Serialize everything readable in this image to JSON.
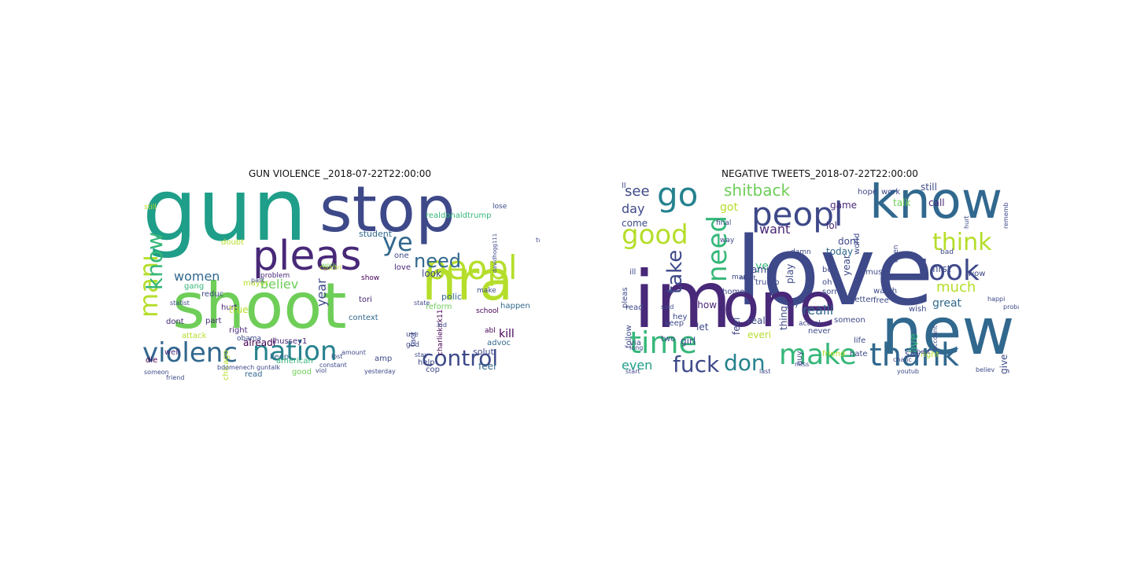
{
  "palette": [
    "#440154",
    "#482878",
    "#3e4989",
    "#31688e",
    "#26828e",
    "#1f9e89",
    "#35b779",
    "#6ece58",
    "#b5de2b",
    "#fde725"
  ],
  "panels": [
    {
      "title": "GUN VIOLENCE _2018-07-22T22:00:00",
      "words": [
        {
          "text": "gun",
          "size": 110,
          "color": "#1f9e89"
        },
        {
          "text": "stop",
          "size": 80,
          "color": "#3e4989"
        },
        {
          "text": "shoot",
          "size": 80,
          "color": "#6ece58"
        },
        {
          "text": "nra",
          "size": 70,
          "color": "#b5de2b"
        },
        {
          "text": "pleas",
          "size": 52,
          "color": "#482878"
        },
        {
          "text": "peopl",
          "size": 42,
          "color": "#b5de2b"
        },
        {
          "text": "violenc",
          "size": 34,
          "color": "#31688e"
        },
        {
          "text": "nation",
          "size": 34,
          "color": "#26828e"
        },
        {
          "text": "control",
          "size": 28,
          "color": "#3e4989"
        },
        {
          "text": "mani",
          "size": 32,
          "color": "#b5de2b",
          "rot": -90
        },
        {
          "text": "know",
          "size": 28,
          "color": "#35b779",
          "rot": -90
        },
        {
          "text": "ye",
          "size": 32,
          "color": "#31688e"
        },
        {
          "text": "need",
          "size": 24,
          "color": "#31688e"
        },
        {
          "text": "women",
          "size": 16,
          "color": "#31688e"
        },
        {
          "text": "believ",
          "size": 16,
          "color": "#6ece58"
        },
        {
          "text": "year",
          "size": 16,
          "color": "#3e4989",
          "rot": -90
        },
        {
          "text": "realdonaldtrump",
          "size": 10,
          "color": "#35b779"
        },
        {
          "text": "charliekirk11",
          "size": 9,
          "color": "#440154",
          "rot": -90
        },
        {
          "text": "student",
          "size": 11,
          "color": "#31688e"
        },
        {
          "text": "reduc",
          "size": 10,
          "color": "#3e4989"
        },
        {
          "text": "mayor",
          "size": 10,
          "color": "#b5de2b"
        },
        {
          "text": "hurt",
          "size": 10,
          "color": "#482878"
        },
        {
          "text": "doubt",
          "size": 10,
          "color": "#b5de2b"
        },
        {
          "text": "gang",
          "size": 10,
          "color": "#35b779"
        },
        {
          "text": "true",
          "size": 12,
          "color": "#b5de2b"
        },
        {
          "text": "dont",
          "size": 10,
          "color": "#482878"
        },
        {
          "text": "part",
          "size": 10,
          "color": "#482878"
        },
        {
          "text": "right",
          "size": 10,
          "color": "#482878"
        },
        {
          "text": "alreadi",
          "size": 12,
          "color": "#440154"
        },
        {
          "text": "look",
          "size": 12,
          "color": "#3e4989"
        },
        {
          "text": "tori",
          "size": 10,
          "color": "#482878"
        },
        {
          "text": "keep",
          "size": 10,
          "color": "#31688e"
        },
        {
          "text": "attack",
          "size": 10,
          "color": "#b5de2b"
        },
        {
          "text": "chicago",
          "size": 10,
          "color": "#b5de2b",
          "rot": -90
        },
        {
          "text": "american",
          "size": 10,
          "color": "#35b779"
        },
        {
          "text": "good",
          "size": 10,
          "color": "#6ece58"
        },
        {
          "text": "read",
          "size": 10,
          "color": "#31688e"
        },
        {
          "text": "ihussey1",
          "size": 10,
          "color": "#482878"
        },
        {
          "text": "well",
          "size": 10,
          "color": "#482878"
        },
        {
          "text": "die",
          "size": 10,
          "color": "#440154"
        },
        {
          "text": "polic",
          "size": 11,
          "color": "#31688e"
        },
        {
          "text": "reform",
          "size": 10,
          "color": "#6ece58"
        },
        {
          "text": "kill",
          "size": 14,
          "color": "#440154"
        },
        {
          "text": "happen",
          "size": 10,
          "color": "#31688e"
        },
        {
          "text": "context",
          "size": 10,
          "color": "#31688e"
        },
        {
          "text": "show",
          "size": 9,
          "color": "#440154"
        },
        {
          "text": "one",
          "size": 10,
          "color": "#3e4989"
        },
        {
          "text": "love",
          "size": 10,
          "color": "#482878"
        },
        {
          "text": "problem",
          "size": 9,
          "color": "#482878"
        },
        {
          "text": "obama",
          "size": 9,
          "color": "#3e4989"
        },
        {
          "text": "feel",
          "size": 12,
          "color": "#31688e"
        },
        {
          "text": "abl",
          "size": 9,
          "color": "#440154"
        },
        {
          "text": "advoc",
          "size": 10,
          "color": "#31688e"
        },
        {
          "text": "make",
          "size": 9,
          "color": "#3e4989"
        },
        {
          "text": "school",
          "size": 9,
          "color": "#440154"
        },
        {
          "text": "use",
          "size": 9,
          "color": "#3e4989"
        },
        {
          "text": "god",
          "size": 9,
          "color": "#3e4989"
        },
        {
          "text": "amp",
          "size": 10,
          "color": "#3e4989"
        },
        {
          "text": "solut",
          "size": 11,
          "color": "#3e4989"
        },
        {
          "text": "help",
          "size": 10,
          "color": "#3e4989"
        },
        {
          "text": "fact",
          "size": 10,
          "color": "#3e4989",
          "rot": -90
        },
        {
          "text": "cop",
          "size": 10,
          "color": "#3e4989"
        },
        {
          "text": "still",
          "size": 9,
          "color": "#b5de2b"
        },
        {
          "text": "lose",
          "size": 9,
          "color": "#3e4989"
        },
        {
          "text": "past",
          "size": 8,
          "color": "#3e4989"
        },
        {
          "text": "countri",
          "size": 8,
          "color": "#b5de2b"
        },
        {
          "text": "friend",
          "size": 8,
          "color": "#3e4989"
        },
        {
          "text": "statist",
          "size": 8,
          "color": "#3e4989"
        },
        {
          "text": "amount",
          "size": 8,
          "color": "#3e4989"
        },
        {
          "text": "constant",
          "size": 8,
          "color": "#3e4989"
        },
        {
          "text": "bdomenech",
          "size": 8,
          "color": "#3e4989"
        },
        {
          "text": "guntalk",
          "size": 8,
          "color": "#3e4989"
        },
        {
          "text": "yesterday",
          "size": 8,
          "color": "#3e4989"
        },
        {
          "text": "stay",
          "size": 8,
          "color": "#3e4989"
        },
        {
          "text": "lost",
          "size": 8,
          "color": "#3e4989"
        },
        {
          "text": "viol",
          "size": 8,
          "color": "#3e4989"
        },
        {
          "text": "work",
          "size": 8,
          "color": "#6ece58"
        },
        {
          "text": "davidhogg111",
          "size": 7,
          "color": "#3e4989",
          "rot": -90
        },
        {
          "text": "tweet",
          "size": 8,
          "color": "#3e4989"
        },
        {
          "text": "state",
          "size": 8,
          "color": "#3e4989"
        },
        {
          "text": "kid",
          "size": 8,
          "color": "#3e4989"
        },
        {
          "text": "someon",
          "size": 8,
          "color": "#3e4989"
        }
      ]
    },
    {
      "title": "NEGATIVE TWEETS_2018-07-22T22:00:00",
      "words": [
        {
          "text": "love",
          "size": 120,
          "color": "#3e4989"
        },
        {
          "text": "im",
          "size": 100,
          "color": "#482878"
        },
        {
          "text": "one",
          "size": 78,
          "color": "#482878"
        },
        {
          "text": "new",
          "size": 82,
          "color": "#31688e"
        },
        {
          "text": "know",
          "size": 64,
          "color": "#31688e"
        },
        {
          "text": "peopl",
          "size": 42,
          "color": "#3e4989"
        },
        {
          "text": "go",
          "size": 42,
          "color": "#26828e"
        },
        {
          "text": "good",
          "size": 34,
          "color": "#b5de2b"
        },
        {
          "text": "need",
          "size": 34,
          "color": "#35b779",
          "rot": -90
        },
        {
          "text": "thank",
          "size": 40,
          "color": "#31688e"
        },
        {
          "text": "make",
          "size": 36,
          "color": "#35b779"
        },
        {
          "text": "time",
          "size": 38,
          "color": "#35b779"
        },
        {
          "text": "look",
          "size": 36,
          "color": "#3e4989"
        },
        {
          "text": "think",
          "size": 30,
          "color": "#b5de2b"
        },
        {
          "text": "fuck",
          "size": 28,
          "color": "#3e4989"
        },
        {
          "text": "don",
          "size": 28,
          "color": "#26828e"
        },
        {
          "text": "take",
          "size": 26,
          "color": "#3e4989",
          "rot": -90
        },
        {
          "text": "shitback",
          "size": 20,
          "color": "#6ece58"
        },
        {
          "text": "want",
          "size": 16,
          "color": "#482878"
        },
        {
          "text": "see",
          "size": 18,
          "color": "#3e4989"
        },
        {
          "text": "day",
          "size": 16,
          "color": "#3e4989"
        },
        {
          "text": "got",
          "size": 14,
          "color": "#b5de2b"
        },
        {
          "text": "much",
          "size": 18,
          "color": "#b5de2b"
        },
        {
          "text": "realli",
          "size": 16,
          "color": "#31688e"
        },
        {
          "text": "even",
          "size": 16,
          "color": "#1f9e89"
        },
        {
          "text": "show",
          "size": 12,
          "color": "#482878"
        },
        {
          "text": "ye",
          "size": 14,
          "color": "#35b779"
        },
        {
          "text": "lol",
          "size": 12,
          "color": "#482878"
        },
        {
          "text": "dont",
          "size": 12,
          "color": "#3e4989"
        },
        {
          "text": "today",
          "size": 12,
          "color": "#31688e"
        },
        {
          "text": "game",
          "size": 12,
          "color": "#482878"
        },
        {
          "text": "talk",
          "size": 12,
          "color": "#6ece58"
        },
        {
          "text": "call",
          "size": 12,
          "color": "#482878"
        },
        {
          "text": "still",
          "size": 12,
          "color": "#3e4989"
        },
        {
          "text": "hope",
          "size": 10,
          "color": "#3e4989"
        },
        {
          "text": "work",
          "size": 10,
          "color": "#3e4989"
        },
        {
          "text": "first",
          "size": 12,
          "color": "#3e4989"
        },
        {
          "text": "great",
          "size": 14,
          "color": "#31688e"
        },
        {
          "text": "wow",
          "size": 10,
          "color": "#3e4989"
        },
        {
          "text": "come",
          "size": 12,
          "color": "#3e4989"
        },
        {
          "text": "play",
          "size": 12,
          "color": "#3e4989",
          "rot": -90
        },
        {
          "text": "amp",
          "size": 12,
          "color": "#3e4989"
        },
        {
          "text": "home",
          "size": 10,
          "color": "#3e4989"
        },
        {
          "text": "year",
          "size": 12,
          "color": "#3e4989",
          "rot": -90
        },
        {
          "text": "music",
          "size": 10,
          "color": "#3e4989"
        },
        {
          "text": "never",
          "size": 10,
          "color": "#3e4989"
        },
        {
          "text": "watch",
          "size": 10,
          "color": "#3e4989"
        },
        {
          "text": "better",
          "size": 10,
          "color": "#3e4989"
        },
        {
          "text": "free",
          "size": 10,
          "color": "#3e4989"
        },
        {
          "text": "live",
          "size": 14,
          "color": "#35b779",
          "rot": -90
        },
        {
          "text": "say",
          "size": 12,
          "color": "#3e4989"
        },
        {
          "text": "give",
          "size": 12,
          "color": "#3e4989",
          "rot": -90
        },
        {
          "text": "keep",
          "size": 10,
          "color": "#3e4989"
        },
        {
          "text": "let",
          "size": 12,
          "color": "#3e4989"
        },
        {
          "text": "feel",
          "size": 12,
          "color": "#3e4989",
          "rot": -90
        },
        {
          "text": "girl",
          "size": 12,
          "color": "#3e4989"
        },
        {
          "text": "real",
          "size": 12,
          "color": "#3e4989"
        },
        {
          "text": "everi",
          "size": 12,
          "color": "#b5de2b"
        },
        {
          "text": "thing",
          "size": 12,
          "color": "#3e4989",
          "rot": -90
        },
        {
          "text": "someon",
          "size": 10,
          "color": "#3e4989"
        },
        {
          "text": "life",
          "size": 10,
          "color": "#3e4989"
        },
        {
          "text": "wish",
          "size": 10,
          "color": "#3e4989"
        },
        {
          "text": "right",
          "size": 10,
          "color": "#b5de2b"
        },
        {
          "text": "friend",
          "size": 10,
          "color": "#b5de2b"
        },
        {
          "text": "hate",
          "size": 10,
          "color": "#3e4989"
        },
        {
          "text": "pleas",
          "size": 10,
          "color": "#3e4989",
          "rot": -90
        },
        {
          "text": "follow",
          "size": 10,
          "color": "#3e4989",
          "rot": -90
        },
        {
          "text": "read",
          "size": 10,
          "color": "#3e4989"
        },
        {
          "text": "two",
          "size": 10,
          "color": "#3e4989"
        },
        {
          "text": "hey",
          "size": 10,
          "color": "#3e4989"
        },
        {
          "text": "ill",
          "size": 10,
          "color": "#3e4989"
        },
        {
          "text": "via",
          "size": 10,
          "color": "#3e4989"
        },
        {
          "text": "man",
          "size": 9,
          "color": "#3e4989"
        },
        {
          "text": "trump",
          "size": 10,
          "color": "#3e4989"
        },
        {
          "text": "sorri",
          "size": 10,
          "color": "#3e4989"
        },
        {
          "text": "bet",
          "size": 10,
          "color": "#3e4989"
        },
        {
          "text": "oh",
          "size": 10,
          "color": "#3e4989"
        },
        {
          "text": "world",
          "size": 10,
          "color": "#3e4989",
          "rot": -90
        },
        {
          "text": "guy",
          "size": 10,
          "color": "#3e4989",
          "rot": -90
        },
        {
          "text": "final",
          "size": 9,
          "color": "#3e4989"
        },
        {
          "text": "way",
          "size": 9,
          "color": "#3e4989"
        },
        {
          "text": "damn",
          "size": 9,
          "color": "#3e4989"
        },
        {
          "text": "actual",
          "size": 9,
          "color": "#3e4989"
        },
        {
          "text": "bad",
          "size": 9,
          "color": "#3e4989"
        },
        {
          "text": "open",
          "size": 9,
          "color": "#3e4989",
          "rot": -90
        },
        {
          "text": "rememb",
          "size": 8,
          "color": "#3e4989",
          "rot": -90
        },
        {
          "text": "hurt",
          "size": 8,
          "color": "#3e4989",
          "rot": -90
        },
        {
          "text": "happi",
          "size": 8,
          "color": "#3e4989"
        },
        {
          "text": "believ",
          "size": 8,
          "color": "#3e4989"
        },
        {
          "text": "youtub",
          "size": 8,
          "color": "#3e4989"
        },
        {
          "text": "chanc",
          "size": 8,
          "color": "#3e4989"
        },
        {
          "text": "start",
          "size": 8,
          "color": "#3e4989"
        },
        {
          "text": "last",
          "size": 8,
          "color": "#3e4989"
        },
        {
          "text": "said",
          "size": 8,
          "color": "#3e4989"
        },
        {
          "text": "night",
          "size": 8,
          "color": "#3e4989"
        },
        {
          "text": "miss",
          "size": 8,
          "color": "#3e4989"
        },
        {
          "text": "boy",
          "size": 8,
          "color": "#3e4989"
        },
        {
          "text": "probabl",
          "size": 8,
          "color": "#3e4989"
        },
        {
          "text": "account",
          "size": 8,
          "color": "#3e4989",
          "rot": -90
        },
        {
          "text": "best",
          "size": 8,
          "color": "#3e4989"
        },
        {
          "text": "long",
          "size": 8,
          "color": "#3e4989"
        },
        {
          "text": "ll",
          "size": 10,
          "color": "#3e4989"
        }
      ]
    }
  ]
}
